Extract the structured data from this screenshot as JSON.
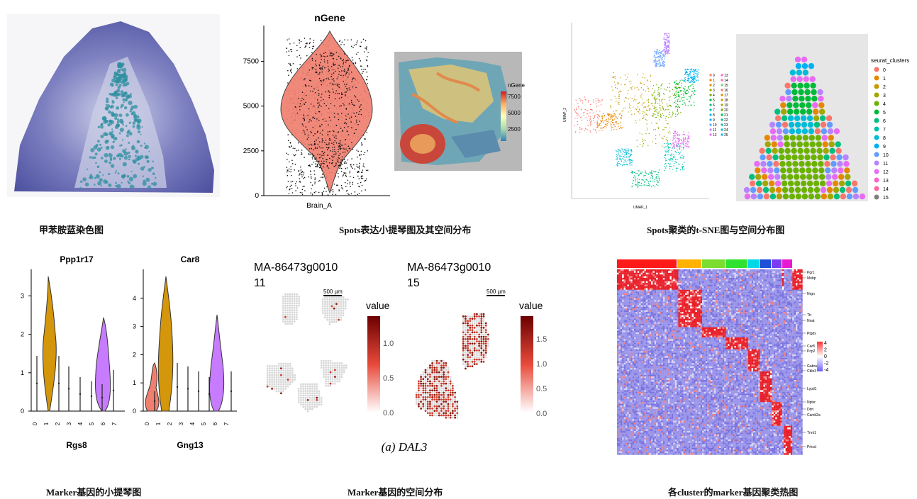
{
  "captions": {
    "p1": "甲苯胺蓝染色图",
    "p2": "Spots表达小提琴图及其空间分布",
    "p3": "Spots聚类的t-SNE图与空间分布图",
    "p4": "Marker基因的小提琴图",
    "p5": "Marker基因的空间分布",
    "p6": "各cluster的marker基因聚类热图"
  },
  "colors": {
    "stain_bg": "#5a5fa8",
    "stain_core": "#2f8fa0",
    "violin_red": "#f07f6f",
    "violin_gold": "#d4960a",
    "violin_purple": "#c77cff",
    "heat_high": "#e8202a",
    "heat_low": "#7a74e0"
  },
  "chart_data": [
    {
      "type": "violin",
      "title": "nGene",
      "categories": [
        "Brain_A"
      ],
      "yticks": [
        0,
        2500,
        5000,
        7500
      ],
      "ylim": [
        0,
        9500
      ],
      "legend": {
        "title": "nGene",
        "ticks": [
          "7500",
          "5000",
          "2500"
        ]
      }
    },
    {
      "type": "scatter",
      "xlabel": "UMAP_1",
      "ylabel": "UMAP_2",
      "legend_labels": [
        "0",
        "1",
        "2",
        "3",
        "4",
        "5",
        "6",
        "7",
        "8",
        "9",
        "10",
        "11",
        "12",
        "13",
        "14",
        "15",
        "16",
        "17",
        "18",
        "19",
        "20",
        "21",
        "22",
        "23",
        "24",
        "25"
      ],
      "spatial_legend": {
        "title": "seurat_clusters",
        "labels": [
          "0",
          "1",
          "2",
          "3",
          "4",
          "5",
          "6",
          "7",
          "8",
          "9",
          "10",
          "11",
          "12",
          "13",
          "14",
          "15"
        ],
        "colors": [
          "#f8766d",
          "#e58700",
          "#c99800",
          "#a3a500",
          "#6bb100",
          "#00ba38",
          "#00bf7d",
          "#00c0af",
          "#00bcd8",
          "#00b0f6",
          "#619cff",
          "#b983ff",
          "#e76bf3",
          "#fd61d1",
          "#ff67a4",
          "#7f7f7f"
        ]
      }
    },
    {
      "type": "violin",
      "title": "Ppp1r17",
      "categories": [
        "0",
        "1",
        "2",
        "3",
        "4",
        "5",
        "6",
        "7"
      ],
      "yticks": [
        0,
        1,
        2,
        3
      ],
      "ylim": [
        0,
        3.6
      ],
      "footer": "Rgs8"
    },
    {
      "type": "violin",
      "title": "Car8",
      "categories": [
        "0",
        "1",
        "2",
        "3",
        "4",
        "5",
        "6",
        "7"
      ],
      "yticks": [
        0,
        1,
        2,
        3,
        4
      ],
      "ylim": [
        0,
        4.9
      ],
      "footer": "Gng13"
    },
    {
      "type": "heatmap",
      "title": "MA-86473g0010",
      "subtitle": "11",
      "scalebar": "500 µm",
      "legend": {
        "title": "value",
        "ticks": [
          "1.0",
          "0.5",
          "0.0"
        ]
      }
    },
    {
      "type": "heatmap",
      "title": "MA-86473g0010",
      "subtitle": "15",
      "scalebar": "500 µm",
      "legend": {
        "title": "value",
        "ticks": [
          "1.5",
          "1.0",
          "0.5",
          "0.0"
        ]
      },
      "footer": "(a) DAL3"
    },
    {
      "type": "heatmap",
      "gene_labels": [
        "Pgr1",
        "Mobp",
        "Nrgn",
        "Ttr",
        "Nnat",
        "Ptgds",
        "Car8",
        "Pcp2",
        "Gabra6",
        "Cbln3",
        "Lypd1",
        "Nptxr",
        "Ddn",
        "Camk2a",
        "Tnnt1",
        "Prkcd"
      ],
      "legend": {
        "ticks": [
          "4",
          "2",
          "0",
          "-2",
          "-4"
        ]
      }
    }
  ]
}
